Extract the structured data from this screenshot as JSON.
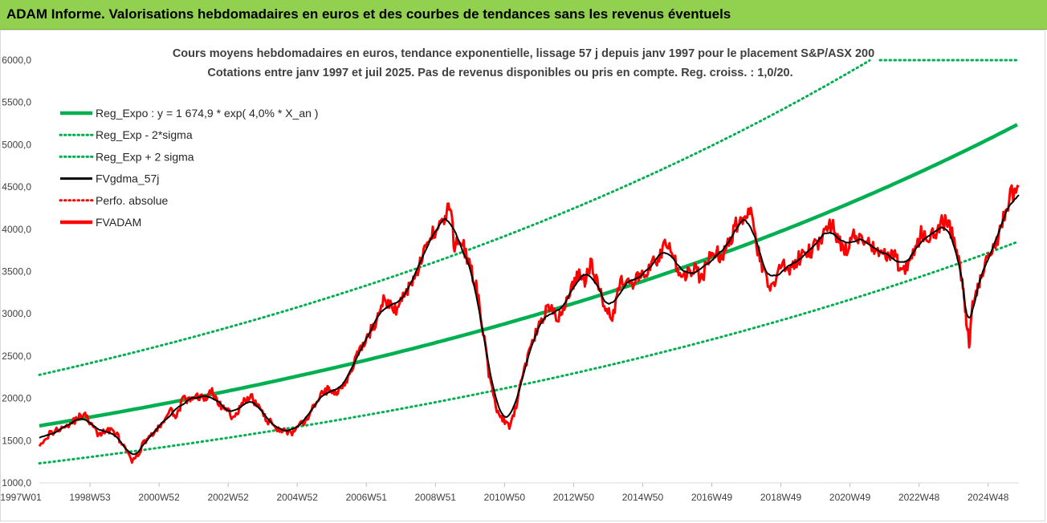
{
  "header": {
    "title": "ADAM Informe. Valorisations hebdomadaires en euros et des courbes de tendances sans les revenus éventuels"
  },
  "chart_data": {
    "type": "line",
    "subtitle_line1": "Cours moyens hebdomadaires en euros, tendance exponentielle, lissage 57 j depuis janv 1997 pour le placement S&P/ASX 200",
    "subtitle_line2": "Cotations entre janv 1997 et juil 2025. Pas de revenus disponibles ou pris en compte. Reg. croiss. : 1,0/20.",
    "ylim": [
      1000,
      6000
    ],
    "y_ticks": [
      "1000,0",
      "1500,0",
      "2000,0",
      "2500,0",
      "3000,0",
      "3500,0",
      "4000,0",
      "4500,0",
      "5000,0",
      "5500,0",
      "6000,0"
    ],
    "x_ticks": [
      "1997W01",
      "1998W53",
      "2000W52",
      "2002W52",
      "2004W52",
      "2006W51",
      "2008W51",
      "2010W50",
      "2012W50",
      "2014W50",
      "2016W49",
      "2018W49",
      "2020W49",
      "2022W48",
      "2024W48"
    ],
    "x_range": [
      1997.0,
      2025.55
    ],
    "grid": false,
    "legend_position": "top-left",
    "legend": [
      {
        "label": "Reg_Expo : y = 1 674,9 * exp( 4,0% *  X_an )",
        "color": "#00b050",
        "style": "solid-thick"
      },
      {
        "label": "Reg_Exp - 2*sigma",
        "color": "#00b050",
        "style": "dotted"
      },
      {
        "label": "Reg_Exp + 2 sigma",
        "color": "#00b050",
        "style": "dotted"
      },
      {
        "label": "FVgdma_57j",
        "color": "#000000",
        "style": "solid"
      },
      {
        "label": "Perfo. absolue",
        "color": "#ff0000",
        "style": "dotted"
      },
      {
        "label": "FVADAM",
        "color": "#ff0000",
        "style": "solid-thick"
      }
    ],
    "regression": {
      "a": 1674.9,
      "rate": 0.04,
      "x0": 1997.0,
      "sigma_factor_low": 0.735,
      "sigma_factor_high": 1.36
    },
    "series": [
      {
        "name": "FVADAM",
        "color": "#ff0000",
        "points": [
          [
            1997.0,
            1470
          ],
          [
            1997.3,
            1580
          ],
          [
            1997.6,
            1650
          ],
          [
            1997.9,
            1700
          ],
          [
            1998.1,
            1760
          ],
          [
            1998.3,
            1820
          ],
          [
            1998.5,
            1700
          ],
          [
            1998.7,
            1580
          ],
          [
            1998.9,
            1600
          ],
          [
            1999.1,
            1640
          ],
          [
            1999.3,
            1540
          ],
          [
            1999.5,
            1400
          ],
          [
            1999.7,
            1260
          ],
          [
            1999.85,
            1300
          ],
          [
            2000.0,
            1450
          ],
          [
            2000.2,
            1560
          ],
          [
            2000.4,
            1600
          ],
          [
            2000.6,
            1720
          ],
          [
            2000.8,
            1850
          ],
          [
            2001.0,
            1800
          ],
          [
            2001.2,
            2000
          ],
          [
            2001.4,
            1960
          ],
          [
            2001.6,
            2040
          ],
          [
            2001.8,
            1980
          ],
          [
            2002.0,
            2100
          ],
          [
            2002.2,
            1950
          ],
          [
            2002.4,
            1870
          ],
          [
            2002.6,
            1800
          ],
          [
            2002.8,
            1850
          ],
          [
            2003.0,
            1980
          ],
          [
            2003.2,
            2000
          ],
          [
            2003.4,
            1900
          ],
          [
            2003.6,
            1750
          ],
          [
            2003.8,
            1700
          ],
          [
            2004.0,
            1630
          ],
          [
            2004.2,
            1610
          ],
          [
            2004.4,
            1580
          ],
          [
            2004.6,
            1680
          ],
          [
            2004.8,
            1750
          ],
          [
            2005.0,
            1900
          ],
          [
            2005.2,
            2050
          ],
          [
            2005.4,
            2100
          ],
          [
            2005.6,
            2050
          ],
          [
            2005.8,
            2150
          ],
          [
            2006.0,
            2250
          ],
          [
            2006.2,
            2450
          ],
          [
            2006.4,
            2600
          ],
          [
            2006.6,
            2750
          ],
          [
            2006.8,
            2900
          ],
          [
            2007.0,
            3150
          ],
          [
            2007.2,
            3100
          ],
          [
            2007.4,
            3050
          ],
          [
            2007.6,
            3200
          ],
          [
            2007.8,
            3350
          ],
          [
            2008.0,
            3500
          ],
          [
            2008.2,
            3700
          ],
          [
            2008.4,
            3900
          ],
          [
            2008.6,
            4050
          ],
          [
            2008.8,
            4100
          ],
          [
            2008.95,
            4300
          ],
          [
            2009.1,
            3800
          ],
          [
            2009.3,
            3900
          ],
          [
            2009.5,
            3600
          ],
          [
            2009.7,
            3400
          ],
          [
            2009.9,
            2900
          ],
          [
            2010.1,
            2300
          ],
          [
            2010.3,
            1900
          ],
          [
            2010.5,
            1750
          ],
          [
            2010.7,
            1650
          ],
          [
            2010.9,
            1900
          ],
          [
            2011.1,
            2300
          ],
          [
            2011.3,
            2600
          ],
          [
            2011.5,
            2800
          ],
          [
            2011.7,
            3000
          ],
          [
            2011.9,
            3100
          ],
          [
            2012.1,
            2900
          ],
          [
            2012.3,
            3100
          ],
          [
            2012.5,
            3300
          ],
          [
            2012.7,
            3450
          ],
          [
            2012.9,
            3400
          ],
          [
            2013.1,
            3600
          ],
          [
            2013.3,
            3300
          ],
          [
            2013.5,
            3100
          ],
          [
            2013.7,
            2950
          ],
          [
            2013.9,
            3350
          ],
          [
            2014.1,
            3400
          ],
          [
            2014.3,
            3300
          ],
          [
            2014.5,
            3500
          ],
          [
            2014.7,
            3450
          ],
          [
            2014.9,
            3600
          ],
          [
            2015.1,
            3700
          ],
          [
            2015.3,
            3850
          ],
          [
            2015.5,
            3650
          ],
          [
            2015.7,
            3400
          ],
          [
            2015.9,
            3500
          ],
          [
            2016.1,
            3550
          ],
          [
            2016.3,
            3400
          ],
          [
            2016.5,
            3650
          ],
          [
            2016.7,
            3750
          ],
          [
            2016.9,
            3650
          ],
          [
            2017.1,
            3850
          ],
          [
            2017.3,
            4050
          ],
          [
            2017.5,
            4150
          ],
          [
            2017.7,
            4250
          ],
          [
            2017.9,
            3800
          ],
          [
            2018.1,
            3500
          ],
          [
            2018.3,
            3300
          ],
          [
            2018.5,
            3450
          ],
          [
            2018.7,
            3600
          ],
          [
            2018.9,
            3500
          ],
          [
            2019.1,
            3650
          ],
          [
            2019.3,
            3700
          ],
          [
            2019.5,
            3750
          ],
          [
            2019.7,
            3850
          ],
          [
            2019.9,
            4000
          ],
          [
            2020.1,
            4050
          ],
          [
            2020.3,
            3850
          ],
          [
            2020.5,
            3750
          ],
          [
            2020.7,
            3950
          ],
          [
            2020.9,
            3850
          ],
          [
            2021.1,
            3900
          ],
          [
            2021.3,
            3800
          ],
          [
            2021.5,
            3650
          ],
          [
            2021.7,
            3700
          ],
          [
            2021.9,
            3750
          ],
          [
            2022.1,
            3500
          ],
          [
            2022.3,
            3550
          ],
          [
            2022.5,
            3750
          ],
          [
            2022.7,
            3950
          ],
          [
            2022.9,
            3900
          ],
          [
            2023.1,
            3950
          ],
          [
            2023.3,
            4100
          ],
          [
            2023.5,
            4050
          ],
          [
            2023.7,
            3850
          ],
          [
            2023.9,
            3400
          ],
          [
            2024.0,
            3000
          ],
          [
            2024.1,
            2650
          ],
          [
            2024.2,
            3100
          ],
          [
            2024.35,
            3300
          ],
          [
            2024.5,
            3500
          ],
          [
            2024.7,
            3700
          ],
          [
            2024.9,
            3850
          ],
          [
            2025.1,
            4150
          ],
          [
            2025.3,
            4400
          ],
          [
            2025.55,
            4500
          ]
        ]
      }
    ]
  }
}
